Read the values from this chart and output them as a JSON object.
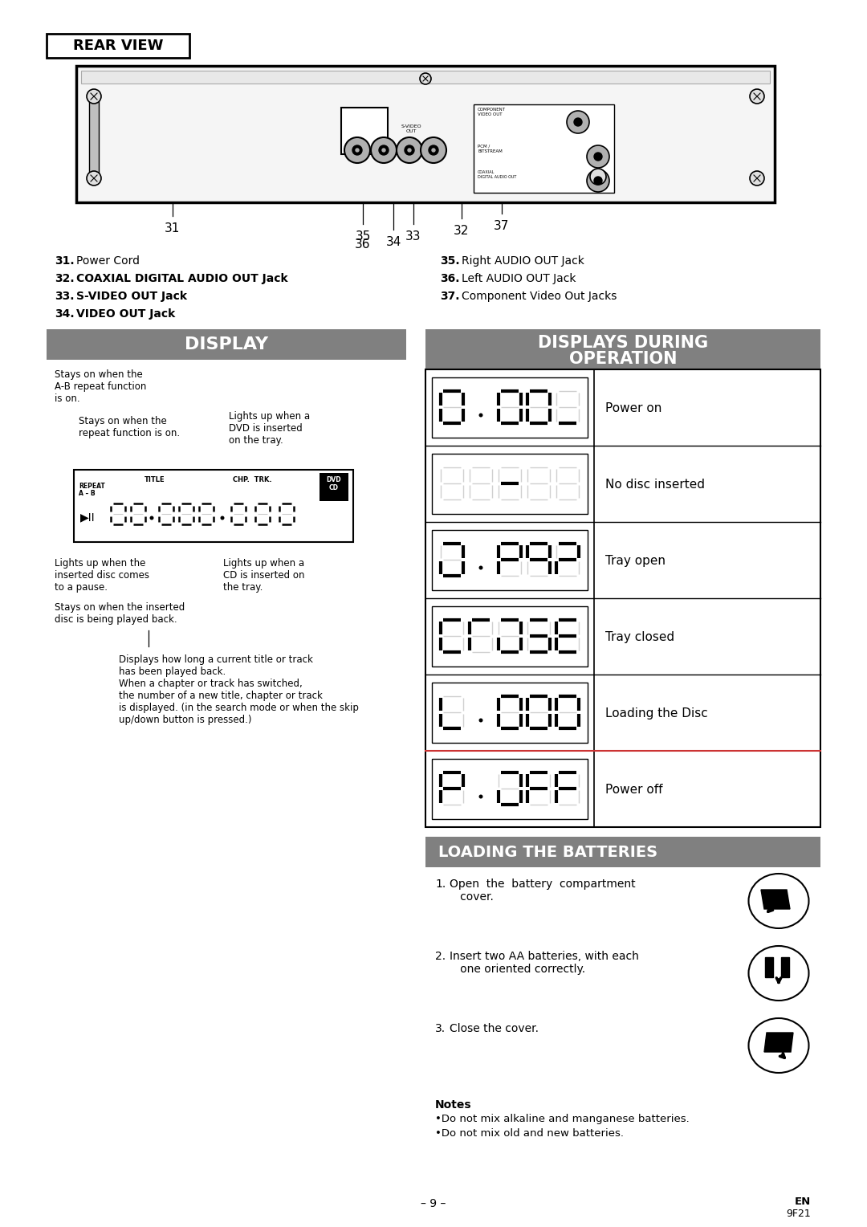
{
  "page_bg": "#ffffff",
  "header_bg": "#808080",
  "header_fg": "#ffffff",
  "rear_view_label": "REAR VIEW",
  "part_numbers_left": [
    {
      "num": "31.",
      "text": "Power Cord",
      "bold": false
    },
    {
      "num": "32.",
      "text": "COAXIAL DIGITAL AUDIO OUT Jack",
      "bold": true
    },
    {
      "num": "33.",
      "text": "S-VIDEO OUT Jack",
      "bold": true
    },
    {
      "num": "34.",
      "text": "VIDEO OUT Jack",
      "bold": true
    }
  ],
  "part_numbers_right": [
    {
      "num": "35.",
      "text": "Right AUDIO OUT Jack",
      "bold": false
    },
    {
      "num": "36.",
      "text": "Left AUDIO OUT Jack",
      "bold": false
    },
    {
      "num": "37.",
      "text": "Component Video Out Jacks",
      "bold": false
    }
  ],
  "display_header": "DISPLAY",
  "display_op_header_line1": "DISPLAYS DURING",
  "display_op_header_line2": "OPERATION",
  "op_display_rows": [
    {
      "label": "Power on"
    },
    {
      "label": "No disc inserted"
    },
    {
      "label": "Tray open"
    },
    {
      "label": "Tray closed"
    },
    {
      "label": "Loading the Disc"
    },
    {
      "label": "Power off"
    }
  ],
  "loading_header": "LOADING THE BATTERIES",
  "loading_steps": [
    {
      "num": "1.",
      "text": "Open  the  battery  compartment\n   cover."
    },
    {
      "num": "2.",
      "text": "Insert two AA batteries, with each\n   one oriented correctly."
    },
    {
      "num": "3.",
      "text": "Close the cover."
    }
  ],
  "loading_notes_title": "Notes",
  "loading_notes": [
    "Do not mix alkaline and manganese batteries.",
    "Do not mix old and new batteries."
  ],
  "footer_page": "– 9 –",
  "footer_lang": "EN",
  "footer_lang2": "9F21"
}
